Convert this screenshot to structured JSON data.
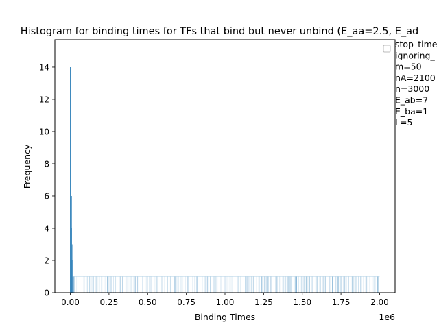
{
  "chart_data": {
    "type": "bar",
    "title": "Histogram for binding times for TFs that bind but never unbind (E_aa=2.5, E_ad",
    "xlabel": "Binding Times",
    "ylabel": "Frequency",
    "x_offset_label": "1e6",
    "xlim": [
      -100000,
      2100000
    ],
    "ylim": [
      0,
      15.7
    ],
    "x_ticks": [
      {
        "value": 0,
        "label": "0.00"
      },
      {
        "value": 250000,
        "label": "0.25"
      },
      {
        "value": 500000,
        "label": "0.50"
      },
      {
        "value": 750000,
        "label": "0.75"
      },
      {
        "value": 1000000,
        "label": "1.00"
      },
      {
        "value": 1250000,
        "label": "1.25"
      },
      {
        "value": 1500000,
        "label": "1.50"
      },
      {
        "value": 1750000,
        "label": "1.75"
      },
      {
        "value": 2000000,
        "label": "2.00"
      }
    ],
    "y_ticks": [
      {
        "value": 0,
        "label": "0"
      },
      {
        "value": 2,
        "label": "2"
      },
      {
        "value": 4,
        "label": "4"
      },
      {
        "value": 6,
        "label": "6"
      },
      {
        "value": 8,
        "label": "8"
      },
      {
        "value": 10,
        "label": "10"
      },
      {
        "value": 12,
        "label": "12"
      },
      {
        "value": 14,
        "label": "14"
      }
    ],
    "peak_bins": [
      {
        "x": 0,
        "y": 14
      },
      {
        "x": 2000,
        "y": 11
      },
      {
        "x": 4000,
        "y": 8
      },
      {
        "x": 6000,
        "y": 6
      },
      {
        "x": 8000,
        "y": 4
      },
      {
        "x": 10000,
        "y": 3
      },
      {
        "x": 12000,
        "y": 2
      },
      {
        "x": 14000,
        "y": 2
      },
      {
        "x": 16000,
        "y": 1
      },
      {
        "x": 18000,
        "y": 1
      }
    ],
    "tail_bins": {
      "x_start": 20000,
      "x_end": 2000000,
      "typical_frequency": 1
    },
    "bar_color": "#1f77b4",
    "grid": false,
    "legend_placement": "top-right outside",
    "legend": {
      "entries": [
        "stop_time",
        "ignoring_",
        "m=50",
        "nA=2100",
        "n=3000",
        "E_ab=7",
        "E_ba=1",
        "L=5"
      ]
    }
  }
}
